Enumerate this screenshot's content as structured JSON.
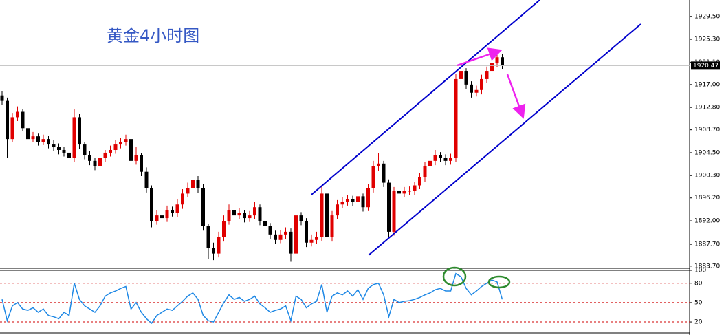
{
  "chart_data": [
    {
      "type": "candlestick",
      "title": "黄金4小时图",
      "open": [
        1915,
        1914,
        1907,
        1911,
        1912,
        1909,
        1907,
        1907.5,
        1906.5,
        1907,
        1906,
        1905.5,
        1905,
        1904.5,
        1903.5,
        1911,
        1906,
        1904,
        1903,
        1902,
        1903.5,
        1904.5,
        1905,
        1906,
        1906.5,
        1907,
        1903,
        1904,
        1901,
        1898,
        1892,
        1893,
        1892.5,
        1894,
        1893.5,
        1895,
        1897,
        1898,
        1899.5,
        1898,
        1891,
        1887,
        1886,
        1889,
        1892,
        1894,
        1893,
        1893.5,
        1892.5,
        1893,
        1894.5,
        1892,
        1891,
        1889.5,
        1888.5,
        1889.5,
        1890,
        1886,
        1893,
        1892,
        1888,
        1888.5,
        1889,
        1897,
        1889,
        1893,
        1895,
        1895.5,
        1896,
        1895.5,
        1896.5,
        1894.5,
        1898,
        1902,
        1902.5,
        1899,
        1890,
        1897.5,
        1897,
        1897.5,
        1897.5,
        1898.5,
        1900,
        1902,
        1903,
        1904,
        1903.5,
        1903,
        1903.5,
        1918,
        1919.5,
        1917,
        1915.5,
        1916,
        1918,
        1919.5,
        1921,
        1922
      ],
      "high": [
        1915.8,
        1914.6,
        1911.8,
        1913,
        1912.5,
        1909.5,
        1908.3,
        1908,
        1907.8,
        1907.6,
        1906.8,
        1906.2,
        1905.6,
        1905.2,
        1912.5,
        1911.6,
        1906.5,
        1904.8,
        1903.6,
        1904.2,
        1905,
        1905.8,
        1906.8,
        1907.2,
        1907.8,
        1907.5,
        1905.5,
        1904.5,
        1901.8,
        1898.5,
        1894,
        1893.8,
        1894.8,
        1894.6,
        1896,
        1897.8,
        1899,
        1901.5,
        1900.2,
        1898.8,
        1891.5,
        1888,
        1890,
        1893,
        1895,
        1894.8,
        1894.3,
        1894,
        1893.8,
        1895.5,
        1895,
        1892.8,
        1891.6,
        1890.2,
        1890.3,
        1890.8,
        1890.6,
        1893.8,
        1893.6,
        1892.5,
        1889.5,
        1890,
        1898.5,
        1897.5,
        1893.8,
        1895.8,
        1896.3,
        1896.8,
        1896.6,
        1897.3,
        1897,
        1898.8,
        1903,
        1904.5,
        1903,
        1899.6,
        1898.2,
        1898,
        1898.2,
        1898.3,
        1899.2,
        1900.8,
        1902.8,
        1903.8,
        1905,
        1904.6,
        1904.2,
        1904.3,
        1919,
        1920.5,
        1920,
        1917.6,
        1916.8,
        1918.8,
        1920.3,
        1921.8,
        1923,
        1922.6
      ],
      "low": [
        1913.2,
        1903.5,
        1906.4,
        1910.3,
        1908.4,
        1906.3,
        1906.4,
        1905.8,
        1905.9,
        1905.3,
        1904.8,
        1904.2,
        1903.8,
        1896,
        1902.8,
        1905.2,
        1903.3,
        1902.2,
        1901.3,
        1901.5,
        1902.8,
        1903.8,
        1904.3,
        1905.3,
        1905.8,
        1902.2,
        1902.3,
        1900.2,
        1897.2,
        1890.8,
        1891.3,
        1891.6,
        1891.8,
        1892.8,
        1892.7,
        1894.2,
        1896.3,
        1897.2,
        1897.1,
        1890.2,
        1885,
        1884.8,
        1885.3,
        1888.2,
        1891.3,
        1892.2,
        1892.3,
        1891.7,
        1891.8,
        1892.3,
        1891.2,
        1890.2,
        1888.6,
        1887.8,
        1887.9,
        1888.7,
        1884.5,
        1885.5,
        1891.2,
        1887.2,
        1887.3,
        1887.8,
        1888.3,
        1885.5,
        1888.2,
        1892.3,
        1894.3,
        1894.8,
        1894.7,
        1894.8,
        1893.7,
        1893.8,
        1897.2,
        1901.2,
        1898.2,
        1889,
        1889.3,
        1896.2,
        1896.3,
        1896.8,
        1896.8,
        1897.8,
        1899.2,
        1901.3,
        1902.2,
        1902.8,
        1902.2,
        1902.3,
        1902.8,
        1914.5,
        1916.2,
        1914.6,
        1914.8,
        1915.2,
        1917.3,
        1918.8,
        1920.2,
        1919.8
      ],
      "close": [
        1914,
        1907,
        1911,
        1912,
        1909,
        1907,
        1907.5,
        1906.5,
        1907,
        1906,
        1905.5,
        1905,
        1904.5,
        1903.5,
        1911,
        1906,
        1904,
        1903,
        1902,
        1903.5,
        1904.5,
        1905,
        1906,
        1906.5,
        1907,
        1903,
        1904,
        1901,
        1898,
        1892,
        1893,
        1892.5,
        1894,
        1893.5,
        1895,
        1897,
        1898,
        1899.5,
        1898,
        1891,
        1887,
        1886,
        1889,
        1892,
        1894,
        1893,
        1893.5,
        1892.5,
        1893,
        1894.5,
        1892,
        1891,
        1889.5,
        1888.5,
        1889.5,
        1890,
        1886,
        1893,
        1892,
        1888,
        1888.5,
        1889,
        1897,
        1889,
        1893,
        1895,
        1895.5,
        1896,
        1895.5,
        1896.5,
        1894.5,
        1898,
        1902,
        1902.5,
        1899,
        1890,
        1897.5,
        1897,
        1897.5,
        1897.5,
        1898.5,
        1900,
        1902,
        1903,
        1904,
        1903.5,
        1903,
        1903.5,
        1918,
        1919.5,
        1917,
        1915.5,
        1916,
        1918,
        1919.5,
        1921,
        1922,
        1920.5
      ],
      "up_color": "#e00000",
      "down_color": "#000000",
      "ylim": [
        1883.3,
        1932.5
      ],
      "yticks": [
        {
          "value": 1929.5,
          "label": "1929.50"
        },
        {
          "value": 1925.3,
          "label": "1925.30"
        },
        {
          "value": 1921.1,
          "label": "1921.10"
        },
        {
          "value": 1917,
          "label": "1917.00"
        },
        {
          "value": 1912.8,
          "label": "1912.80"
        },
        {
          "value": 1908.7,
          "label": "1908.70"
        },
        {
          "value": 1904.5,
          "label": "1904.50"
        },
        {
          "value": 1900.3,
          "label": "1900.30"
        },
        {
          "value": 1896.2,
          "label": "1896.20"
        },
        {
          "value": 1892,
          "label": "1892.00"
        },
        {
          "value": 1887.7,
          "label": "1887.70"
        },
        {
          "value": 1883.7,
          "label": "1883.70"
        }
      ],
      "current_price": 1920.47
    },
    {
      "type": "line",
      "series": [
        {
          "color": "#1e88e5",
          "values": [
            55,
            22,
            45,
            50,
            40,
            38,
            42,
            35,
            40,
            30,
            28,
            25,
            35,
            30,
            80,
            55,
            45,
            40,
            35,
            45,
            60,
            65,
            68,
            72,
            75,
            40,
            50,
            35,
            25,
            18,
            30,
            35,
            40,
            38,
            45,
            52,
            60,
            65,
            55,
            30,
            22,
            20,
            35,
            50,
            62,
            55,
            58,
            52,
            55,
            60,
            48,
            42,
            35,
            38,
            40,
            45,
            22,
            60,
            55,
            42,
            48,
            52,
            78,
            35,
            60,
            65,
            62,
            68,
            60,
            70,
            55,
            72,
            78,
            80,
            62,
            28,
            55,
            50,
            52,
            53,
            55,
            58,
            62,
            65,
            70,
            72,
            68,
            68,
            95,
            90,
            72,
            62,
            68,
            75,
            80,
            85,
            82,
            55
          ]
        }
      ],
      "ylim": [
        3,
        100
      ],
      "yticks": [
        20,
        50,
        80,
        100
      ],
      "levels": [
        80,
        50,
        20
      ],
      "level_color": "#d00000"
    }
  ]
}
